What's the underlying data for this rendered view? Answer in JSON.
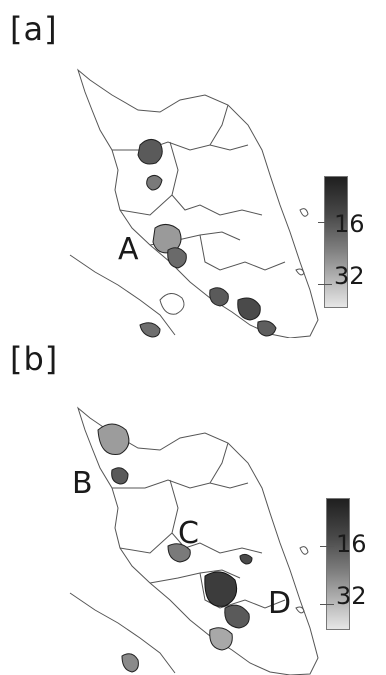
{
  "panels": [
    {
      "tag": "[a]",
      "region_labels": [
        "A"
      ],
      "colorbar": {
        "tick_labels": [
          "16",
          "32"
        ],
        "colors": [
          "#1f1f1f",
          "#e6e6e6"
        ]
      }
    },
    {
      "tag": "[b]",
      "region_labels": [
        "B",
        "C",
        "D"
      ],
      "colorbar": {
        "tick_labels": [
          "16",
          "32"
        ],
        "colors": [
          "#1f1f1f",
          "#e6e6e6"
        ]
      }
    }
  ]
}
